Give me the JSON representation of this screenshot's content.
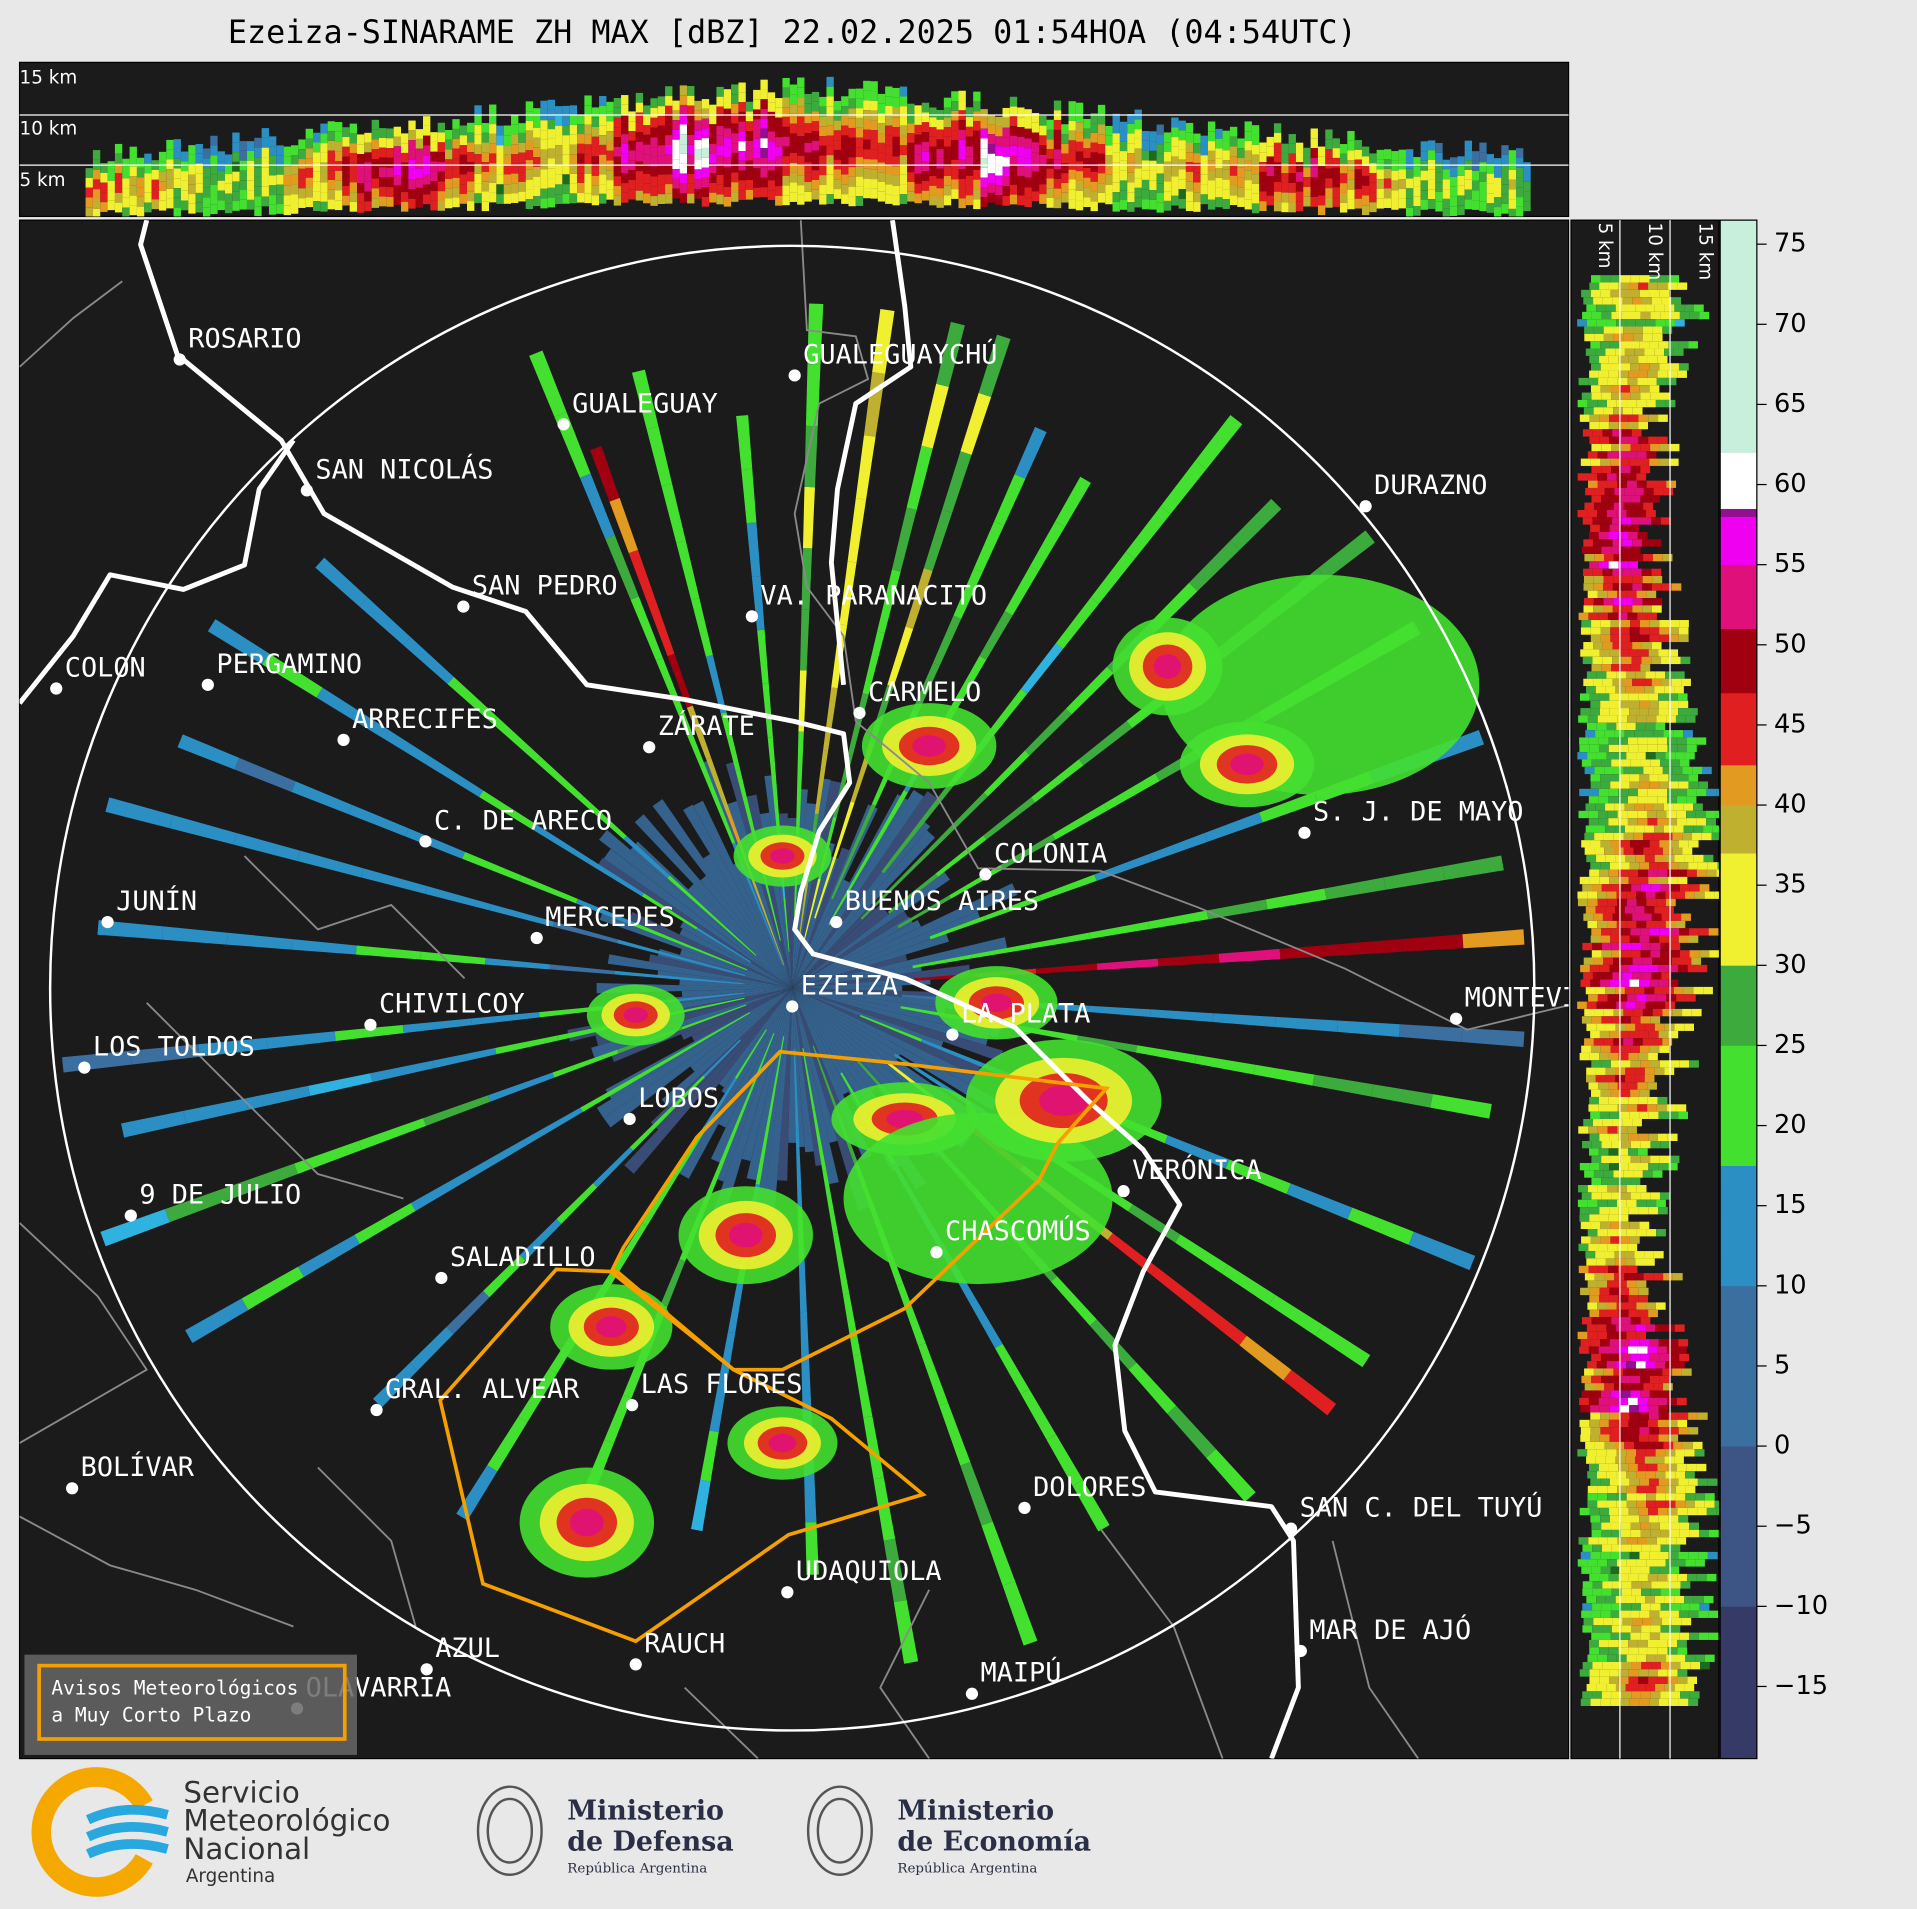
{
  "title": "Ezeiza-SINARAME ZH MAX [dBZ] 22.02.2025 01:54HOA (04:54UTC)",
  "top_panel": {
    "height_labels": [
      "15 km",
      "10 km",
      "5 km"
    ]
  },
  "right_panel": {
    "height_labels": [
      "5 km",
      "10 km",
      "15 km"
    ]
  },
  "cities": [
    "ROSARIO",
    "GUALEGUAYCHÚ",
    "GUALEGUAY",
    "SAN NICOLÁS",
    "DURAZNO",
    "SAN PEDRO",
    "VA. PARANACITO",
    "COLON",
    "PERGAMINO",
    "CARMELO",
    "ARRECIFES",
    "ZÁRATE",
    "S. J. DE MAYO",
    "C. DE ARECO",
    "COLONIA",
    "BUENOS AIRES",
    "JUNÍN",
    "MERCEDES",
    "EZEIZA",
    "MONTEVIDEO",
    "LA PLATA",
    "CHIVILCOY",
    "LOS TOLDOS",
    "LOBOS",
    "VERÓNICA",
    "9 DE JULIO",
    "CHASCOMÚS",
    "SALADILLO",
    "GRAL. ALVEAR",
    "LAS FLORES",
    "BOLÍVAR",
    "DOLORES",
    "SAN C. DEL TUYÚ",
    "UDAQUIOLA",
    "MAR DE AJÓ",
    "AZUL",
    "RAUCH",
    "MAIPÚ",
    "OLAVARRÍA"
  ],
  "legend": {
    "lines": [
      "Avisos Meteorológicos",
      "a Muy Corto Plazo"
    ]
  },
  "colorbar": {
    "ylim": [
      -19.5,
      76.5
    ],
    "yticks": [
      {
        "value": -15,
        "label": "−15"
      },
      {
        "value": -10,
        "label": "−10"
      },
      {
        "value": -5,
        "label": "−5"
      },
      0,
      5,
      10,
      15,
      20,
      25,
      30,
      35,
      40,
      45,
      50,
      55,
      60,
      65,
      70,
      75
    ]
  },
  "footer": {
    "smn": [
      "Servicio",
      "Meteorológico",
      "Nacional",
      "Argentina"
    ],
    "defensa": [
      "Ministerio",
      "de Defensa",
      "República Argentina"
    ],
    "economia": [
      "Ministerio",
      "de Economía",
      "República Argentina"
    ]
  }
}
